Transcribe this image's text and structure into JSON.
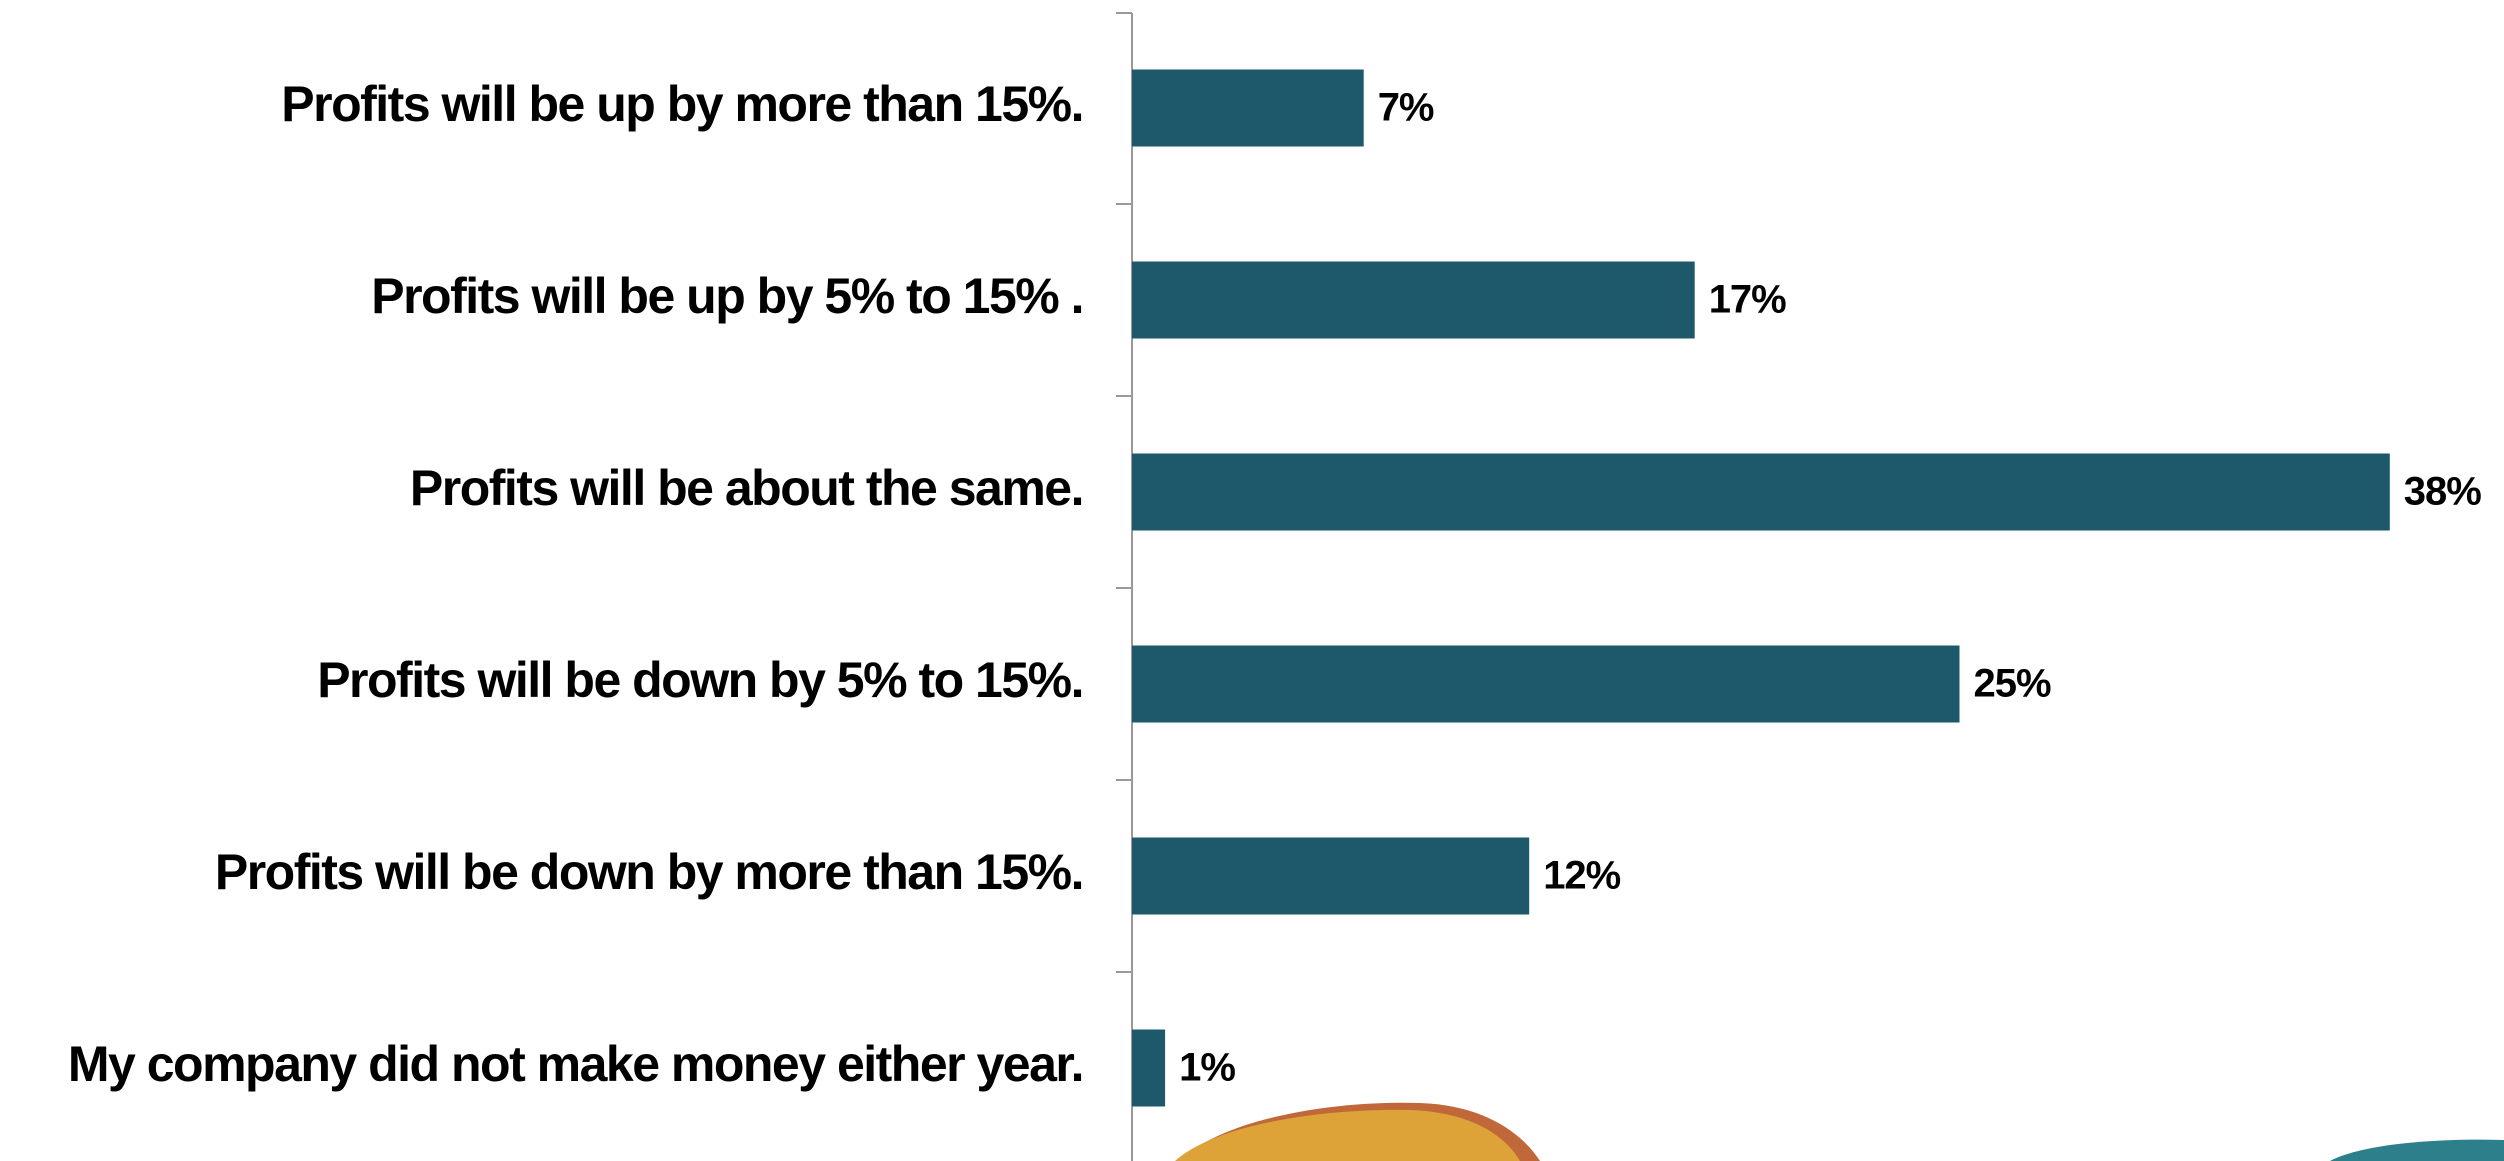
{
  "chart_data": {
    "type": "bar",
    "orientation": "horizontal",
    "categories": [
      "Profits will be up by more than 15%.",
      "Profits will be up by 5% to 15% .",
      "Profits will be about the same.",
      "Profits will be down by 5% to 15%.",
      "Profits will be down by more than 15%.",
      "My company did not make money either year."
    ],
    "values": [
      7,
      17,
      38,
      25,
      12,
      1
    ],
    "value_labels": [
      "7%",
      "17%",
      "38%",
      "25%",
      "12%",
      "1%"
    ],
    "color": "#1d586b"
  }
}
